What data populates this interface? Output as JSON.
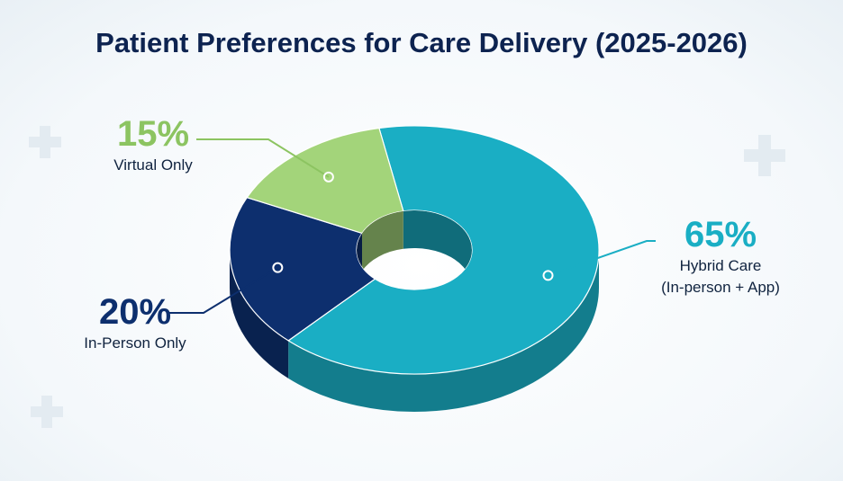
{
  "chart_data": {
    "type": "pie",
    "donut": true,
    "title": "Patient Preferences for Care Delivery (2025-2026)",
    "categories": [
      "Hybrid Care\n(In-person + App)",
      "In-Person Only",
      "Virtual Only"
    ],
    "values": [
      65,
      20,
      15
    ],
    "value_labels": [
      "65%",
      "20%",
      "15%"
    ],
    "colors": [
      "#1aaec4",
      "#0d2f6e",
      "#a3d47a"
    ]
  }
}
